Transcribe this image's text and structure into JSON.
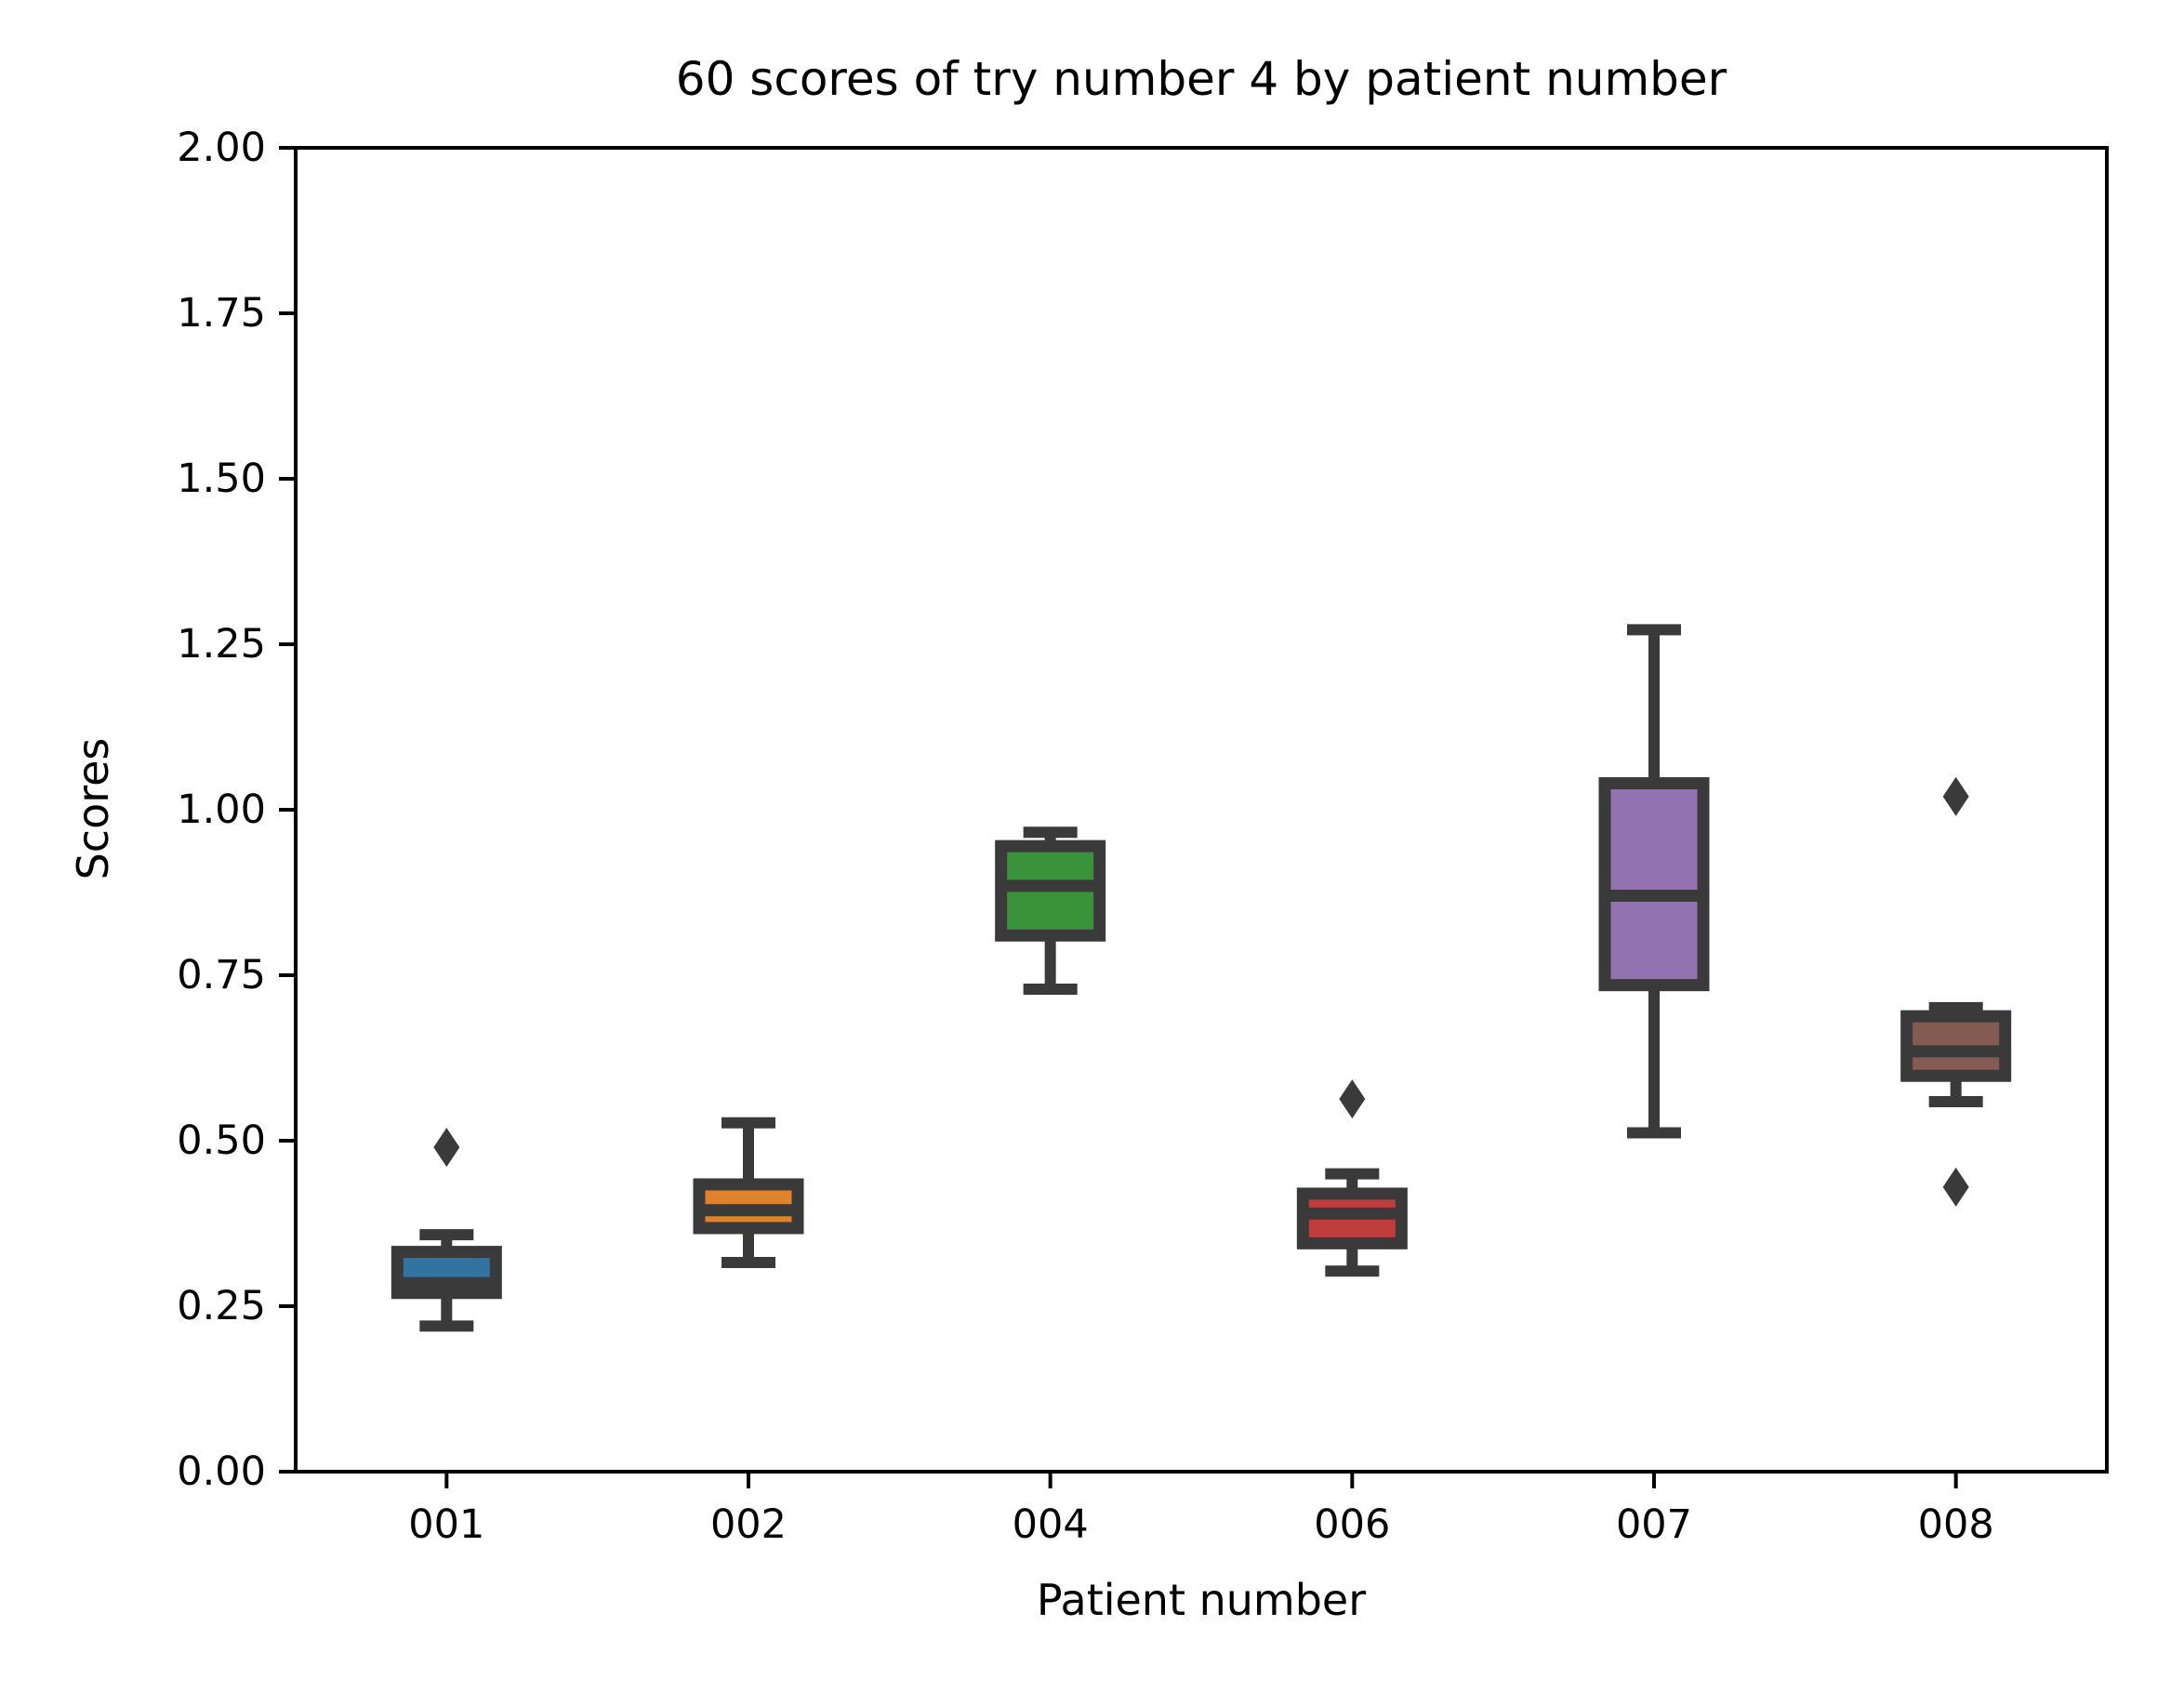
{
  "chart_data": {
    "type": "boxplot",
    "title": "60 scores of try number 4 by patient number",
    "xlabel": "Patient number",
    "ylabel": "Scores",
    "ylim": [
      0.0,
      2.0
    ],
    "grid": false,
    "legend": null,
    "y_ticks": [
      0.0,
      0.25,
      0.5,
      0.75,
      1.0,
      1.25,
      1.5,
      1.75,
      2.0
    ],
    "y_tick_labels": [
      "0.00",
      "0.25",
      "0.50",
      "0.75",
      "1.00",
      "1.25",
      "1.50",
      "1.75",
      "2.00"
    ],
    "categories": [
      "001",
      "002",
      "004",
      "006",
      "007",
      "008"
    ],
    "box_edge_color": "#3A3A3A",
    "flier_color": "#3A3A3A",
    "series": [
      {
        "category": "001",
        "color": "#3274A1",
        "whisker_low": 0.22,
        "q1": 0.27,
        "median": 0.285,
        "q3": 0.332,
        "whisker_high": 0.358,
        "outliers": [
          0.49
        ]
      },
      {
        "category": "002",
        "color": "#E1812C",
        "whisker_low": 0.316,
        "q1": 0.368,
        "median": 0.395,
        "q3": 0.434,
        "whisker_high": 0.527,
        "outliers": []
      },
      {
        "category": "004",
        "color": "#3A923A",
        "whisker_low": 0.729,
        "q1": 0.81,
        "median": 0.885,
        "q3": 0.945,
        "whisker_high": 0.966,
        "outliers": []
      },
      {
        "category": "006",
        "color": "#C03D3E",
        "whisker_low": 0.303,
        "q1": 0.345,
        "median": 0.39,
        "q3": 0.42,
        "whisker_high": 0.45,
        "outliers": [
          0.563
        ]
      },
      {
        "category": "007",
        "color": "#9372B2",
        "whisker_low": 0.512,
        "q1": 0.735,
        "median": 0.87,
        "q3": 1.04,
        "whisker_high": 1.272,
        "outliers": []
      },
      {
        "category": "008",
        "color": "#845B53",
        "whisker_low": 0.559,
        "q1": 0.598,
        "median": 0.635,
        "q3": 0.688,
        "whisker_high": 0.701,
        "outliers": [
          1.02,
          0.43
        ]
      }
    ]
  }
}
